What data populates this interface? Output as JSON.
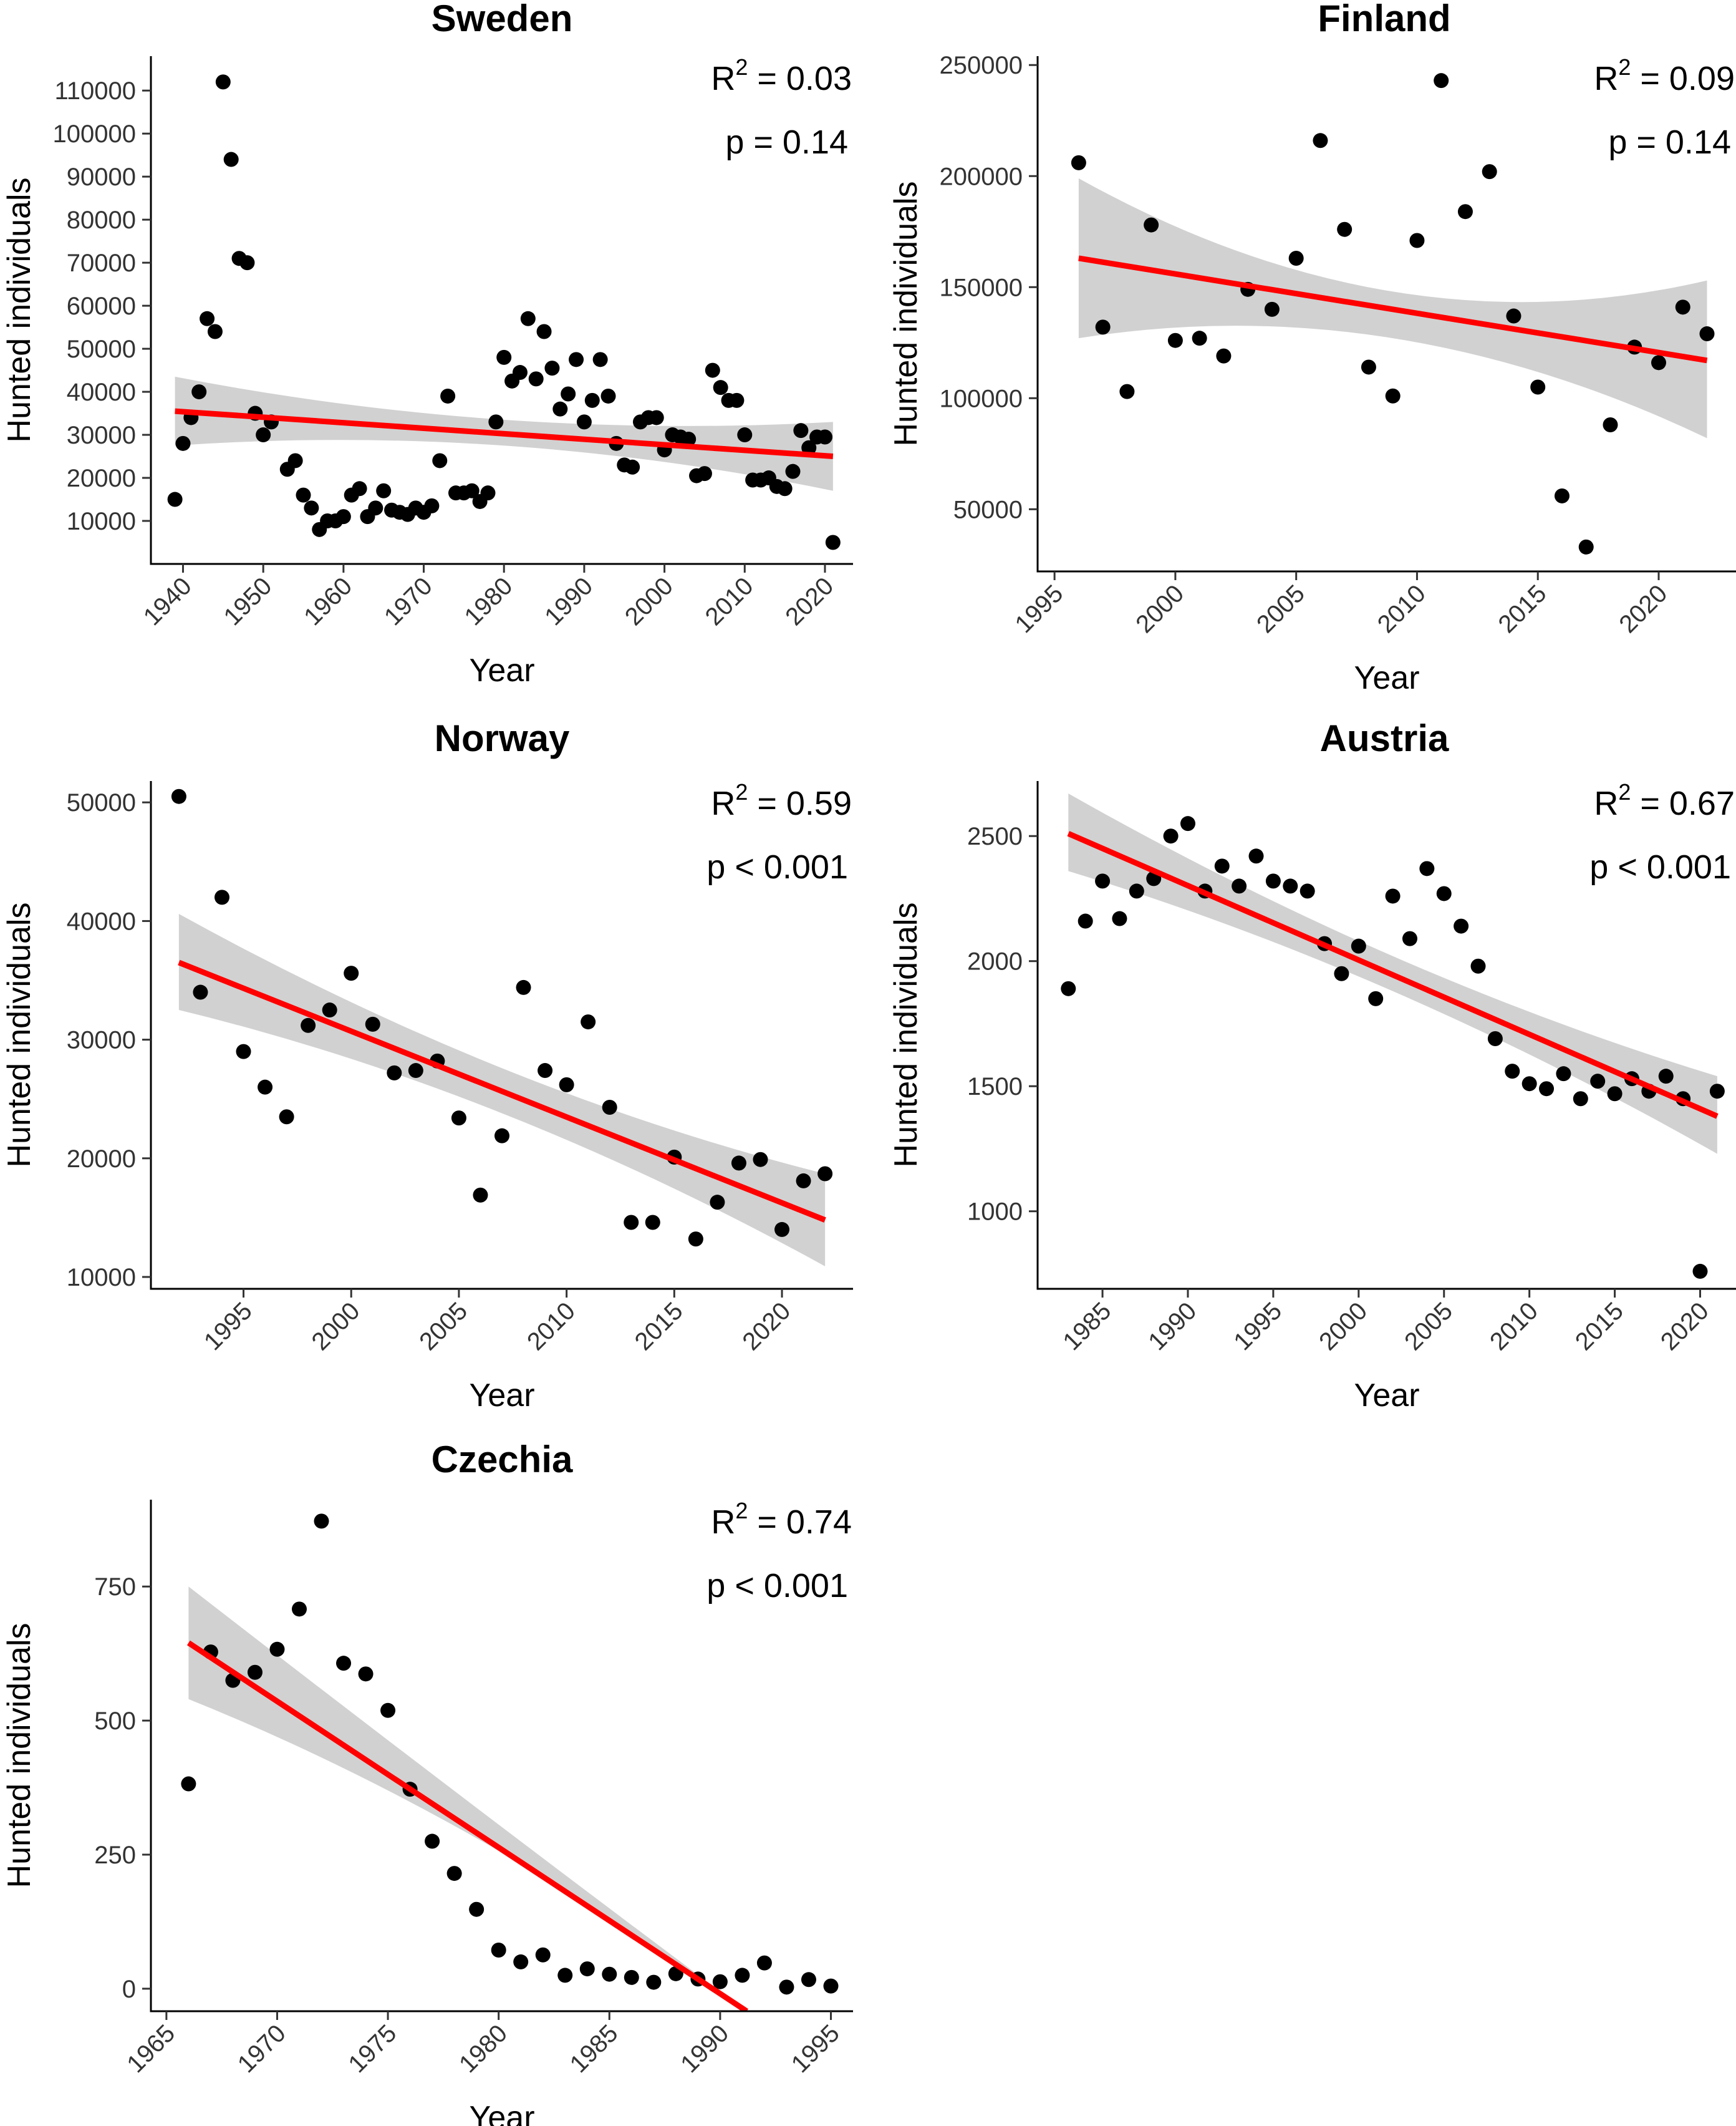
{
  "chart_data": [
    {
      "type": "scatter",
      "title": "Sweden",
      "xlabel": "Year",
      "ylabel": "Hunted individuals",
      "xlim": [
        1936,
        2023.5
      ],
      "ylim": [
        0,
        118000
      ],
      "xticks": [
        1940,
        1950,
        1960,
        1970,
        1980,
        1990,
        2000,
        2010,
        2020
      ],
      "yticks": [
        10000,
        20000,
        30000,
        40000,
        50000,
        60000,
        70000,
        80000,
        90000,
        100000,
        110000
      ],
      "r2_label": "R",
      "r2_value": " = 0.03",
      "p_label": "p = 0.14",
      "points": [
        [
          1939,
          15000
        ],
        [
          1940,
          28000
        ],
        [
          1941,
          34000
        ],
        [
          1942,
          40000
        ],
        [
          1943,
          57000
        ],
        [
          1944,
          54000
        ],
        [
          1945,
          112000
        ],
        [
          1946,
          94000
        ],
        [
          1947,
          71000
        ],
        [
          1948,
          70000
        ],
        [
          1949,
          35000
        ],
        [
          1950,
          30000
        ],
        [
          1951,
          33000
        ],
        [
          1953,
          22000
        ],
        [
          1954,
          24000
        ],
        [
          1955,
          16000
        ],
        [
          1956,
          13000
        ],
        [
          1957,
          8000
        ],
        [
          1958,
          10000
        ],
        [
          1959,
          10000
        ],
        [
          1960,
          11000
        ],
        [
          1961,
          16000
        ],
        [
          1962,
          17500
        ],
        [
          1963,
          11000
        ],
        [
          1964,
          13000
        ],
        [
          1965,
          17000
        ],
        [
          1966,
          12500
        ],
        [
          1967,
          12000
        ],
        [
          1968,
          11500
        ],
        [
          1969,
          13000
        ],
        [
          1970,
          12000
        ],
        [
          1971,
          13500
        ],
        [
          1972,
          24000
        ],
        [
          1973,
          39000
        ],
        [
          1974,
          16500
        ],
        [
          1975,
          16500
        ],
        [
          1976,
          17000
        ],
        [
          1977,
          14500
        ],
        [
          1978,
          16500
        ],
        [
          1979,
          33000
        ],
        [
          1980,
          48000
        ],
        [
          1981,
          42500
        ],
        [
          1982,
          44500
        ],
        [
          1983,
          57000
        ],
        [
          1984,
          43000
        ],
        [
          1985,
          54000
        ],
        [
          1986,
          45500
        ],
        [
          1987,
          36000
        ],
        [
          1988,
          39500
        ],
        [
          1989,
          47500
        ],
        [
          1990,
          33000
        ],
        [
          1991,
          38000
        ],
        [
          1992,
          47500
        ],
        [
          1993,
          39000
        ],
        [
          1994,
          28000
        ],
        [
          1995,
          23000
        ],
        [
          1996,
          22500
        ],
        [
          1997,
          33000
        ],
        [
          1998,
          34000
        ],
        [
          1999,
          34000
        ],
        [
          2000,
          26500
        ],
        [
          2001,
          30000
        ],
        [
          2002,
          29500
        ],
        [
          2003,
          29000
        ],
        [
          2004,
          20500
        ],
        [
          2005,
          21000
        ],
        [
          2006,
          45000
        ],
        [
          2007,
          41000
        ],
        [
          2008,
          38000
        ],
        [
          2009,
          38000
        ],
        [
          2010,
          30000
        ],
        [
          2011,
          19500
        ],
        [
          2012,
          19500
        ],
        [
          2013,
          20000
        ],
        [
          2014,
          18000
        ],
        [
          2015,
          17500
        ],
        [
          2016,
          21500
        ],
        [
          2017,
          31000
        ],
        [
          2018,
          27000
        ],
        [
          2019,
          29500
        ],
        [
          2020,
          29500
        ],
        [
          2021,
          5000
        ]
      ],
      "trend": {
        "x0": 1939,
        "y0": 35500,
        "x1": 2021,
        "y1": 25000
      },
      "ci": {
        "upper0": 43500,
        "lower0": 27500,
        "upperMid": 33500,
        "lowerMid": 27500,
        "upper1": 33000,
        "lower1": 17000
      }
    },
    {
      "type": "scatter",
      "title": "Finland",
      "xlabel": "Year",
      "ylabel": "Hunted individuals",
      "xlim": [
        1994.3,
        2023.2
      ],
      "ylim": [
        22000,
        254000
      ],
      "xticks": [
        1995,
        2000,
        2005,
        2010,
        2015,
        2020
      ],
      "yticks": [
        50000,
        100000,
        150000,
        200000,
        250000
      ],
      "r2_label": "R",
      "r2_value": " = 0.09",
      "p_label": "p = 0.14",
      "points": [
        [
          1996,
          206000
        ],
        [
          1997,
          132000
        ],
        [
          1998,
          103000
        ],
        [
          1999,
          178000
        ],
        [
          2000,
          126000
        ],
        [
          2001,
          127000
        ],
        [
          2002,
          119000
        ],
        [
          2003,
          149000
        ],
        [
          2004,
          140000
        ],
        [
          2005,
          163000
        ],
        [
          2006,
          216000
        ],
        [
          2007,
          176000
        ],
        [
          2008,
          114000
        ],
        [
          2009,
          101000
        ],
        [
          2010,
          171000
        ],
        [
          2011,
          243000
        ],
        [
          2012,
          184000
        ],
        [
          2013,
          202000
        ],
        [
          2014,
          137000
        ],
        [
          2015,
          105000
        ],
        [
          2016,
          56000
        ],
        [
          2017,
          33000
        ],
        [
          2018,
          88000
        ],
        [
          2019,
          123000
        ],
        [
          2020,
          116000
        ],
        [
          2021,
          141000
        ],
        [
          2022,
          129000
        ]
      ],
      "trend": {
        "x0": 1996,
        "y0": 163000,
        "x1": 2022,
        "y1": 117000
      },
      "ci": {
        "upper0": 199000,
        "lower0": 127000,
        "upperMid": 148000,
        "lowerMid": 127000,
        "upper1": 153000,
        "lower1": 82000
      }
    },
    {
      "type": "scatter",
      "title": "Norway",
      "xlabel": "Year",
      "ylabel": "Hunted individuals",
      "xlim": [
        1990.7,
        2023.3
      ],
      "ylim": [
        9000,
        51800
      ],
      "xticks": [
        1995,
        2000,
        2005,
        2010,
        2015,
        2020
      ],
      "yticks": [
        10000,
        20000,
        30000,
        40000,
        50000
      ],
      "r2_label": "R",
      "r2_value": " = 0.59",
      "p_label": "p < 0.001",
      "points": [
        [
          1992,
          50500
        ],
        [
          1993,
          34000
        ],
        [
          1994,
          42000
        ],
        [
          1995,
          29000
        ],
        [
          1996,
          26000
        ],
        [
          1997,
          23500
        ],
        [
          1998,
          31200
        ],
        [
          1999,
          32500
        ],
        [
          2000,
          35600
        ],
        [
          2001,
          31300
        ],
        [
          2002,
          27200
        ],
        [
          2003,
          27400
        ],
        [
          2004,
          28200
        ],
        [
          2005,
          23400
        ],
        [
          2006,
          16900
        ],
        [
          2007,
          21900
        ],
        [
          2008,
          34400
        ],
        [
          2009,
          27400
        ],
        [
          2010,
          26200
        ],
        [
          2011,
          31500
        ],
        [
          2012,
          24300
        ],
        [
          2013,
          14600
        ],
        [
          2014,
          14600
        ],
        [
          2015,
          20100
        ],
        [
          2016,
          13200
        ],
        [
          2017,
          16300
        ],
        [
          2018,
          19600
        ],
        [
          2019,
          19900
        ],
        [
          2020,
          14000
        ],
        [
          2021,
          18100
        ],
        [
          2022,
          18700
        ]
      ],
      "trend": {
        "x0": 1992,
        "y0": 36500,
        "x1": 2022,
        "y1": 14800
      },
      "ci": {
        "upper0": 40600,
        "lower0": 32500,
        "upperMid": 27600,
        "lowerMid": 23800,
        "upper1": 18700,
        "lower1": 10900
      }
    },
    {
      "type": "scatter",
      "title": "Austria",
      "xlabel": "Year",
      "ylabel": "Hunted individuals",
      "xlim": [
        1981.2,
        2022.1
      ],
      "ylim": [
        690,
        2720
      ],
      "xticks": [
        1985,
        1990,
        1995,
        2000,
        2005,
        2010,
        2015,
        2020
      ],
      "yticks": [
        1000,
        1500,
        2000,
        2500
      ],
      "r2_label": "R",
      "r2_value": " = 0.67",
      "p_label": "p < 0.001",
      "points": [
        [
          1983,
          1890
        ],
        [
          1984,
          2160
        ],
        [
          1985,
          2320
        ],
        [
          1986,
          2170
        ],
        [
          1987,
          2280
        ],
        [
          1988,
          2330
        ],
        [
          1989,
          2500
        ],
        [
          1990,
          2550
        ],
        [
          1991,
          2280
        ],
        [
          1992,
          2380
        ],
        [
          1993,
          2300
        ],
        [
          1994,
          2420
        ],
        [
          1995,
          2320
        ],
        [
          1996,
          2300
        ],
        [
          1997,
          2280
        ],
        [
          1998,
          2070
        ],
        [
          1999,
          1950
        ],
        [
          2000,
          2060
        ],
        [
          2001,
          1850
        ],
        [
          2002,
          2260
        ],
        [
          2003,
          2090
        ],
        [
          2004,
          2370
        ],
        [
          2005,
          2270
        ],
        [
          2006,
          2140
        ],
        [
          2007,
          1980
        ],
        [
          2008,
          1690
        ],
        [
          2009,
          1560
        ],
        [
          2010,
          1510
        ],
        [
          2011,
          1490
        ],
        [
          2012,
          1550
        ],
        [
          2013,
          1450
        ],
        [
          2014,
          1520
        ],
        [
          2015,
          1470
        ],
        [
          2016,
          1530
        ],
        [
          2017,
          1480
        ],
        [
          2018,
          1540
        ],
        [
          2019,
          1450
        ],
        [
          2020,
          760
        ],
        [
          2021,
          1480
        ]
      ],
      "trend": {
        "x0": 1983,
        "y0": 2510,
        "x1": 2021,
        "y1": 1380
      },
      "ci": {
        "upper0": 2670,
        "lower0": 2360,
        "upperMid": 2020,
        "lowerMid": 1880,
        "upper1": 1540,
        "lower1": 1230
      }
    },
    {
      "type": "scatter",
      "title": "Czechia",
      "xlabel": "Year",
      "ylabel": "Hunted individuals",
      "xlim": [
        1964.3,
        1996.0
      ],
      "ylim": [
        -42,
        912
      ],
      "xticks": [
        1965,
        1970,
        1975,
        1980,
        1985,
        1990,
        1995
      ],
      "yticks": [
        0,
        250,
        500,
        750
      ],
      "r2_label": "R",
      "r2_value": " = 0.74",
      "p_label": "p < 0.001",
      "points": [
        [
          1966,
          382
        ],
        [
          1967,
          628
        ],
        [
          1968,
          575
        ],
        [
          1969,
          590
        ],
        [
          1970,
          633
        ],
        [
          1971,
          708
        ],
        [
          1972,
          872
        ],
        [
          1973,
          607
        ],
        [
          1974,
          587
        ],
        [
          1975,
          519
        ],
        [
          1976,
          372
        ],
        [
          1977,
          275
        ],
        [
          1978,
          215
        ],
        [
          1979,
          148
        ],
        [
          1980,
          72
        ],
        [
          1981,
          50
        ],
        [
          1982,
          63
        ],
        [
          1983,
          25
        ],
        [
          1984,
          37
        ],
        [
          1985,
          27
        ],
        [
          1986,
          21
        ],
        [
          1987,
          12
        ],
        [
          1988,
          28
        ],
        [
          1989,
          18
        ],
        [
          1990,
          13
        ],
        [
          1991,
          25
        ],
        [
          1992,
          48
        ],
        [
          1993,
          3
        ],
        [
          1994,
          17
        ],
        [
          1995,
          5
        ]
      ],
      "trend": {
        "x0": 1966,
        "y0": 645,
        "x1": 1991.2,
        "y1": -42
      },
      "ci": {
        "upper0": 750,
        "lower0": 540,
        "upperMid": 350,
        "lowerMid": 290,
        "upper1": -42,
        "lower1": -42
      }
    }
  ]
}
